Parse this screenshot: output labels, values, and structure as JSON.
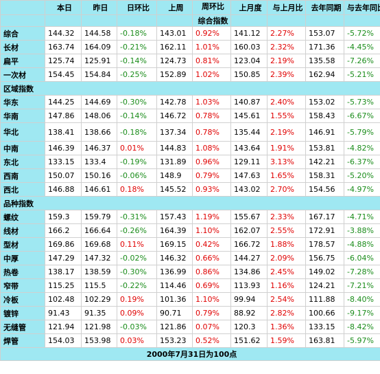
{
  "header": {
    "row1": [
      "",
      "本日",
      "昨日",
      "日环比",
      "上周",
      "周环比",
      "上月度",
      "与上月比",
      "去年同期",
      "与去年同比"
    ],
    "subtitle": "综合指数"
  },
  "colors": {
    "header_bg": "#9fe8f2",
    "negative": "#1a8c1a",
    "positive": "#e00000"
  },
  "sections": [
    {
      "title": "",
      "rows": [
        {
          "name": "综合",
          "today": "144.32",
          "yesterday": "144.58",
          "dod": "-0.18%",
          "lastweek": "143.01",
          "wow": "0.92%",
          "lastmonth": "141.12",
          "mom": "2.27%",
          "lastyear": "153.07",
          "yoy": "-5.72%"
        },
        {
          "name": "长材",
          "today": "163.74",
          "yesterday": "164.09",
          "dod": "-0.21%",
          "lastweek": "162.11",
          "wow": "1.01%",
          "lastmonth": "160.03",
          "mom": "2.32%",
          "lastyear": "171.36",
          "yoy": "-4.45%"
        },
        {
          "name": "扁平",
          "today": "125.74",
          "yesterday": "125.91",
          "dod": "-0.14%",
          "lastweek": "124.73",
          "wow": "0.81%",
          "lastmonth": "123.04",
          "mom": "2.19%",
          "lastyear": "135.58",
          "yoy": "-7.26%"
        },
        {
          "name": "一次材",
          "today": "154.45",
          "yesterday": "154.84",
          "dod": "-0.25%",
          "lastweek": "152.89",
          "wow": "1.02%",
          "lastmonth": "150.85",
          "mom": "2.39%",
          "lastyear": "162.94",
          "yoy": "-5.21%"
        }
      ]
    },
    {
      "title": "区域指数",
      "rows": [
        {
          "name": "华东",
          "today": "144.25",
          "yesterday": "144.69",
          "dod": "-0.30%",
          "lastweek": "142.78",
          "wow": "1.03%",
          "lastmonth": "140.87",
          "mom": "2.40%",
          "lastyear": "153.02",
          "yoy": "-5.73%"
        },
        {
          "name": "华南",
          "today": "147.86",
          "yesterday": "148.06",
          "dod": "-0.14%",
          "lastweek": "146.72",
          "wow": "0.78%",
          "lastmonth": "145.61",
          "mom": "1.55%",
          "lastyear": "158.43",
          "yoy": "-6.67%"
        },
        {
          "name": "华北",
          "today": "138.41",
          "yesterday": "138.66",
          "dod": "-0.18%",
          "lastweek": "137.34",
          "wow": "0.78%",
          "lastmonth": "135.44",
          "mom": "2.19%",
          "lastyear": "146.91",
          "yoy": "-5.79%"
        },
        {
          "name": "中南",
          "today": "146.39",
          "yesterday": "146.37",
          "dod": "0.01%",
          "lastweek": "144.83",
          "wow": "1.08%",
          "lastmonth": "143.64",
          "mom": "1.91%",
          "lastyear": "153.81",
          "yoy": "-4.82%"
        },
        {
          "name": "东北",
          "today": "133.15",
          "yesterday": "133.4",
          "dod": "-0.19%",
          "lastweek": "131.89",
          "wow": "0.96%",
          "lastmonth": "129.11",
          "mom": "3.13%",
          "lastyear": "142.21",
          "yoy": "-6.37%"
        },
        {
          "name": "西南",
          "today": "150.07",
          "yesterday": "150.16",
          "dod": "-0.06%",
          "lastweek": "148.9",
          "wow": "0.79%",
          "lastmonth": "147.63",
          "mom": "1.65%",
          "lastyear": "158.31",
          "yoy": "-5.20%"
        },
        {
          "name": "西北",
          "today": "146.88",
          "yesterday": "146.61",
          "dod": "0.18%",
          "lastweek": "145.52",
          "wow": "0.93%",
          "lastmonth": "143.02",
          "mom": "2.70%",
          "lastyear": "154.56",
          "yoy": "-4.97%"
        }
      ]
    },
    {
      "title": "品种指数",
      "rows": [
        {
          "name": "螺纹",
          "today": "159.3",
          "yesterday": "159.79",
          "dod": "-0.31%",
          "lastweek": "157.43",
          "wow": "1.19%",
          "lastmonth": "155.67",
          "mom": "2.33%",
          "lastyear": "167.17",
          "yoy": "-4.71%"
        },
        {
          "name": "线材",
          "today": "166.2",
          "yesterday": "166.64",
          "dod": "-0.26%",
          "lastweek": "164.39",
          "wow": "1.10%",
          "lastmonth": "162.07",
          "mom": "2.55%",
          "lastyear": "172.91",
          "yoy": "-3.88%"
        },
        {
          "name": "型材",
          "today": "169.86",
          "yesterday": "169.68",
          "dod": "0.11%",
          "lastweek": "169.15",
          "wow": "0.42%",
          "lastmonth": "166.72",
          "mom": "1.88%",
          "lastyear": "178.57",
          "yoy": "-4.88%"
        },
        {
          "name": "中厚",
          "today": "147.29",
          "yesterday": "147.32",
          "dod": "-0.02%",
          "lastweek": "146.32",
          "wow": "0.66%",
          "lastmonth": "144.27",
          "mom": "2.09%",
          "lastyear": "156.75",
          "yoy": "-6.04%"
        },
        {
          "name": "热卷",
          "today": "138.17",
          "yesterday": "138.59",
          "dod": "-0.30%",
          "lastweek": "136.99",
          "wow": "0.86%",
          "lastmonth": "134.86",
          "mom": "2.45%",
          "lastyear": "149.02",
          "yoy": "-7.28%"
        },
        {
          "name": "窄带",
          "today": "115.25",
          "yesterday": "115.5",
          "dod": "-0.22%",
          "lastweek": "114.46",
          "wow": "0.69%",
          "lastmonth": "113.93",
          "mom": "1.16%",
          "lastyear": "124.21",
          "yoy": "-7.21%"
        },
        {
          "name": "冷板",
          "today": "102.48",
          "yesterday": "102.29",
          "dod": "0.19%",
          "lastweek": "101.36",
          "wow": "1.10%",
          "lastmonth": "99.94",
          "mom": "2.54%",
          "lastyear": "111.88",
          "yoy": "-8.40%"
        },
        {
          "name": "镀锌",
          "today": "91.43",
          "yesterday": "91.35",
          "dod": "0.09%",
          "lastweek": "90.71",
          "wow": "0.79%",
          "lastmonth": "88.92",
          "mom": "2.82%",
          "lastyear": "100.66",
          "yoy": "-9.17%"
        },
        {
          "name": "无缝管",
          "today": "121.94",
          "yesterday": "121.98",
          "dod": "-0.03%",
          "lastweek": "121.86",
          "wow": "0.07%",
          "lastmonth": "120.3",
          "mom": "1.36%",
          "lastyear": "133.15",
          "yoy": "-8.42%"
        },
        {
          "name": "焊管",
          "today": "154.03",
          "yesterday": "153.98",
          "dod": "0.03%",
          "lastweek": "153.23",
          "wow": "0.52%",
          "lastmonth": "151.62",
          "mom": "1.59%",
          "lastyear": "163.81",
          "yoy": "-5.97%"
        }
      ]
    }
  ],
  "footer": "2000年7月31日为100点"
}
